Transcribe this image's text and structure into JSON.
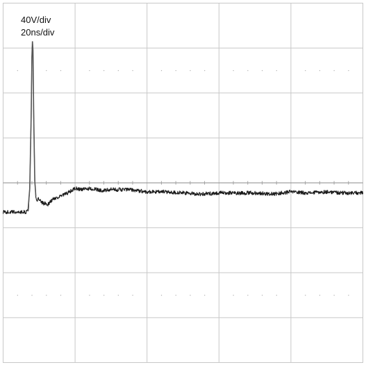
{
  "chart_data": {
    "type": "line",
    "title": "",
    "xlabel": "",
    "ylabel": "",
    "annotations": {
      "vertical_scale": "40V/div",
      "horizontal_scale": "20ns/div"
    },
    "divisions": {
      "x": 5,
      "y": 8
    },
    "center_line_y": 0,
    "xlim": [
      0,
      100
    ],
    "ylim": [
      -160,
      160
    ],
    "x_unit": "ns",
    "y_unit": "V",
    "grid": true,
    "trace_color": "#1a1a1a",
    "grid_color": "#c8c8c8",
    "series": [
      {
        "x": [
          0,
          6.4,
          7.0,
          7.4,
          7.8,
          8.0,
          8.15,
          8.3,
          8.5,
          8.8,
          9.1,
          9.4,
          9.7,
          10.2,
          11.0,
          12.5,
          14.0,
          16.0,
          18.0,
          20.0,
          22.0,
          24.0,
          26.0,
          28.0,
          30.0,
          35.0,
          40.0,
          45.0,
          50.0,
          55.0,
          60.0,
          65.0,
          70.0,
          75.0,
          80.0,
          85.0,
          90.0,
          95.0,
          100.0
        ],
        "y": [
          -26,
          -26,
          -25,
          -5,
          60,
          112,
          126,
          118,
          60,
          2,
          -12,
          -16,
          -14,
          -16,
          -18,
          -19,
          -14,
          -12,
          -9,
          -5,
          -6,
          -5,
          -6,
          -7,
          -6,
          -6,
          -8,
          -8,
          -9,
          -10,
          -9,
          -9,
          -9,
          -10,
          -8,
          -9,
          -8,
          -9,
          -9
        ]
      }
    ]
  }
}
